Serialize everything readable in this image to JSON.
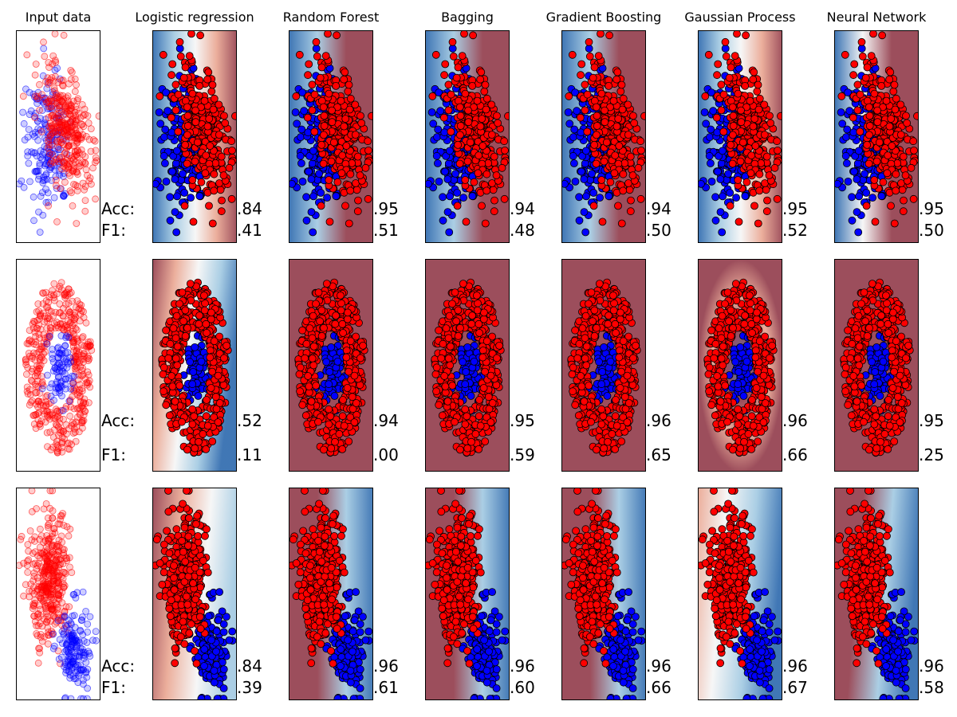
{
  "columns": [
    "Input data",
    "Logistic regression",
    "Random Forest",
    "Bagging",
    "Gradient Boosting",
    "Gaussian Process",
    "Neural Network"
  ],
  "labels": {
    "acc": "Acc:",
    "f1": "F1:"
  },
  "colors": {
    "class0": "#0000ff",
    "class1": "#ff0000",
    "bg_blue": "#1f5fa8",
    "bg_red": "#8b2f3f"
  },
  "chart_data": [
    {
      "type": "scatter",
      "dataset": 1,
      "classifiers": [
        {
          "name": "Logistic regression",
          "acc": ".84",
          "f1": ".41"
        },
        {
          "name": "Random Forest",
          "acc": ".95",
          "f1": ".51"
        },
        {
          "name": "Bagging",
          "acc": ".94",
          "f1": ".48"
        },
        {
          "name": "Gradient Boosting",
          "acc": ".94",
          "f1": ".50"
        },
        {
          "name": "Gaussian Process",
          "acc": ".95",
          "f1": ".52"
        },
        {
          "name": "Neural Network",
          "acc": ".95",
          "f1": ".50"
        }
      ]
    },
    {
      "type": "scatter",
      "dataset": 2,
      "classifiers": [
        {
          "name": "Logistic regression",
          "acc": ".52",
          "f1": ".11"
        },
        {
          "name": "Random Forest",
          "acc": ".94",
          "f1": ".00"
        },
        {
          "name": "Bagging",
          "acc": ".95",
          "f1": ".59"
        },
        {
          "name": "Gradient Boosting",
          "acc": ".96",
          "f1": ".65"
        },
        {
          "name": "Gaussian Process",
          "acc": ".96",
          "f1": ".66"
        },
        {
          "name": "Neural Network",
          "acc": ".95",
          "f1": ".25"
        }
      ]
    },
    {
      "type": "scatter",
      "dataset": 3,
      "classifiers": [
        {
          "name": "Logistic regression",
          "acc": ".84",
          "f1": ".39"
        },
        {
          "name": "Random Forest",
          "acc": ".96",
          "f1": ".61"
        },
        {
          "name": "Bagging",
          "acc": ".96",
          "f1": ".60"
        },
        {
          "name": "Gradient Boosting",
          "acc": ".96",
          "f1": ".66"
        },
        {
          "name": "Gaussian Process",
          "acc": ".96",
          "f1": ".67"
        },
        {
          "name": "Neural Network",
          "acc": ".96",
          "f1": ".58"
        }
      ]
    }
  ]
}
